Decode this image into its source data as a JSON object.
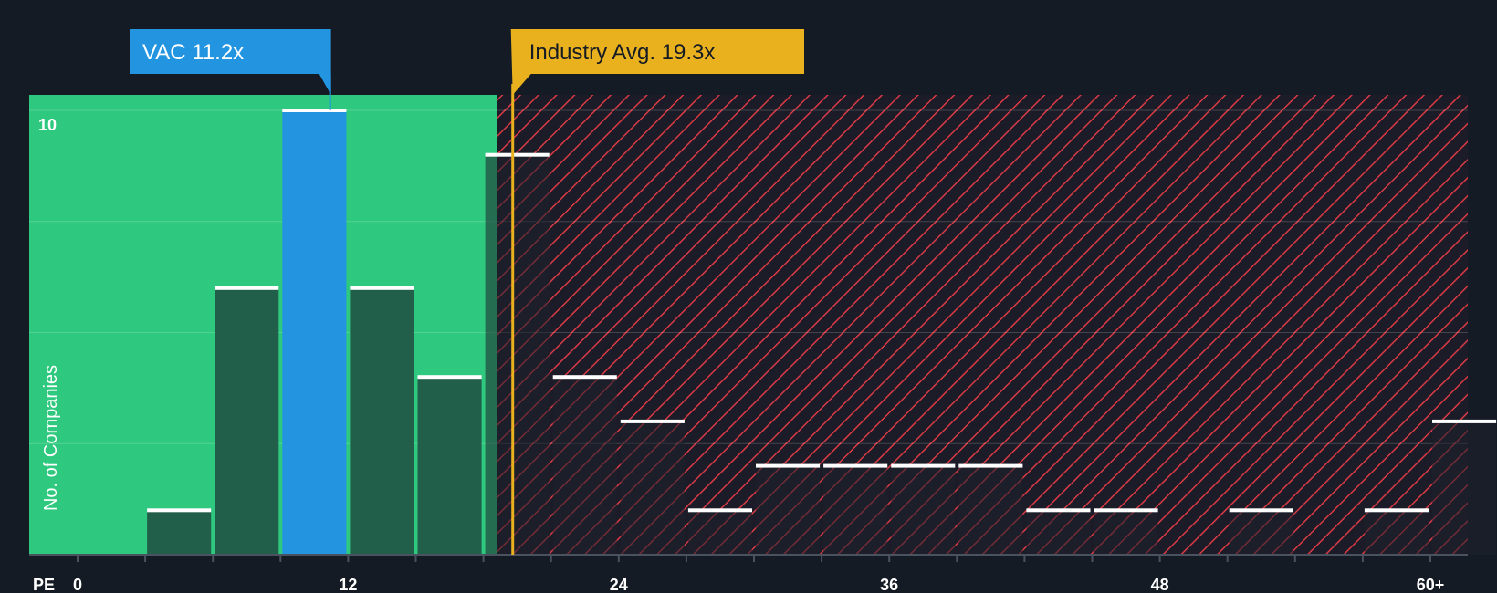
{
  "chart_data": {
    "type": "bar",
    "title": "",
    "xlabel": "PE",
    "ylabel": "No. of Companies",
    "ylim": [
      0,
      10
    ],
    "yticks": [
      {
        "value": 10,
        "label": "10"
      }
    ],
    "xticks": [
      {
        "value": 0,
        "label": "0"
      },
      {
        "value": 12,
        "label": "12"
      },
      {
        "value": 24,
        "label": "24"
      },
      {
        "value": 36,
        "label": "36"
      },
      {
        "value": 48,
        "label": "48"
      },
      {
        "value": 60,
        "label": "60+"
      }
    ],
    "bin_width": 3,
    "bins": [
      {
        "start": 3,
        "value": 1
      },
      {
        "start": 6,
        "value": 6
      },
      {
        "start": 9,
        "value": 10,
        "highlight": true
      },
      {
        "start": 12,
        "value": 6
      },
      {
        "start": 15,
        "value": 4
      },
      {
        "start": 18,
        "value": 9
      },
      {
        "start": 21,
        "value": 4
      },
      {
        "start": 24,
        "value": 3
      },
      {
        "start": 27,
        "value": 1
      },
      {
        "start": 30,
        "value": 2
      },
      {
        "start": 33,
        "value": 2
      },
      {
        "start": 36,
        "value": 2
      },
      {
        "start": 39,
        "value": 2
      },
      {
        "start": 42,
        "value": 1
      },
      {
        "start": 45,
        "value": 1
      },
      {
        "start": 51,
        "value": 1
      },
      {
        "start": 57,
        "value": 1
      },
      {
        "start": 60,
        "value": 3
      }
    ],
    "company": {
      "label": "VAC 11.2x",
      "value": 11.2
    },
    "industry": {
      "label": "Industry Avg. 19.3x",
      "value": 19.3
    },
    "green_zone_end": 18.6,
    "colors": {
      "background": "#151b24",
      "green": "#2ec97e",
      "dark_bar": "#215f4b",
      "highlight": "#2394e0",
      "red_zone": "#1b1c27",
      "hatch": "#d93a45",
      "industry": "#eab11f",
      "cap": "#ffffff"
    }
  }
}
